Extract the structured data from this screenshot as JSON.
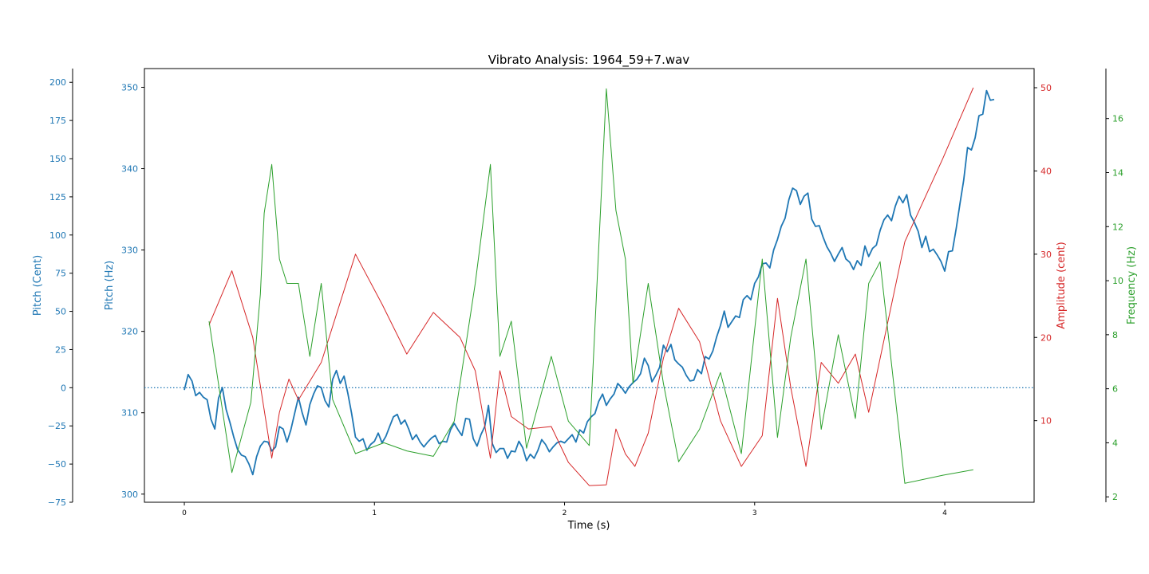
{
  "chart_data": {
    "type": "line",
    "title": "Vibrato Analysis: 1964_59+7.wav",
    "xlabel": "Time (s)",
    "xlim": [
      -0.21,
      4.47
    ],
    "xticks": [
      0,
      1,
      2,
      3,
      4
    ],
    "xtick_labels": [
      "0",
      "1",
      "2",
      "3",
      "4"
    ],
    "axes": {
      "pitch_cent": {
        "label": "Pitch (Cent)",
        "color": "#1f77b4",
        "ylim": [
          -75,
          209
        ],
        "ticks": [
          -75,
          -50,
          -25,
          0,
          25,
          50,
          75,
          100,
          125,
          150,
          175,
          200
        ],
        "tick_labels": [
          "−75",
          "−50",
          "−25",
          "0",
          "25",
          "50",
          "75",
          "100",
          "125",
          "150",
          "175",
          "200"
        ]
      },
      "pitch_hz": {
        "label": "Pitch (Hz)",
        "color": "#1f77b4",
        "ylim": [
          299.0,
          352.3
        ],
        "ticks": [
          300,
          310,
          320,
          330,
          340,
          350
        ],
        "tick_labels": [
          "300",
          "310",
          "320",
          "330",
          "340",
          "350"
        ]
      },
      "amplitude": {
        "label": "Amplitude (cent)",
        "color": "#d62728",
        "ylim": [
          0.2,
          52.3
        ],
        "ticks": [
          10,
          20,
          30,
          40,
          50
        ],
        "tick_labels": [
          "10",
          "20",
          "30",
          "40",
          "50"
        ]
      },
      "frequency": {
        "label": "Frequency (Hz)",
        "color": "#2ca02c",
        "ylim": [
          1.8,
          17.85
        ],
        "ticks": [
          2,
          4,
          6,
          8,
          10,
          12,
          14,
          16
        ],
        "tick_labels": [
          "2",
          "4",
          "6",
          "8",
          "10",
          "12",
          "14",
          "16"
        ]
      }
    },
    "reference_line": {
      "axis": "pitch_cent",
      "y": 0,
      "style": "dotted",
      "color": "#1f77b4"
    },
    "series": [
      {
        "name": "",
        "axis": "pitch_hz",
        "color": "#1f77b4",
        "x": [
          0.0,
          0.02,
          0.04,
          0.06,
          0.08,
          0.1,
          0.12,
          0.14,
          0.16,
          0.18,
          0.2,
          0.22,
          0.24,
          0.26,
          0.28,
          0.3,
          0.32,
          0.34,
          0.36,
          0.38,
          0.4,
          0.42,
          0.44,
          0.46,
          0.48,
          0.5,
          0.52,
          0.54,
          0.56,
          0.58,
          0.6,
          0.62,
          0.64,
          0.66,
          0.68,
          0.7,
          0.72,
          0.74,
          0.76,
          0.78,
          0.8,
          0.82,
          0.84,
          0.86,
          0.88,
          0.9,
          0.92,
          0.94,
          0.96,
          0.98,
          1.0,
          1.02,
          1.04,
          1.06,
          1.08,
          1.1,
          1.12,
          1.14,
          1.16,
          1.18,
          1.2,
          1.22,
          1.24,
          1.26,
          1.28,
          1.3,
          1.32,
          1.34,
          1.36,
          1.38,
          1.4,
          1.42,
          1.44,
          1.46,
          1.48,
          1.5,
          1.52,
          1.54,
          1.56,
          1.58,
          1.6,
          1.62,
          1.64,
          1.66,
          1.68,
          1.7,
          1.72,
          1.74,
          1.76,
          1.78,
          1.8,
          1.82,
          1.84,
          1.86,
          1.88,
          1.9,
          1.92,
          1.94,
          1.96,
          1.98,
          2.0,
          2.02,
          2.04,
          2.06,
          2.08,
          2.1,
          2.12,
          2.14,
          2.16,
          2.18,
          2.2,
          2.22,
          2.24,
          2.26,
          2.28,
          2.3,
          2.32,
          2.34,
          2.36,
          2.38,
          2.4,
          2.42,
          2.44,
          2.46,
          2.48,
          2.5,
          2.52,
          2.54,
          2.56,
          2.58,
          2.6,
          2.62,
          2.64,
          2.66,
          2.68,
          2.7,
          2.72,
          2.74,
          2.76,
          2.78,
          2.8,
          2.82,
          2.84,
          2.86,
          2.88,
          2.9,
          2.92,
          2.94,
          2.96,
          2.98,
          3.0,
          3.02,
          3.04,
          3.06,
          3.08,
          3.1,
          3.12,
          3.14,
          3.16,
          3.18,
          3.2,
          3.22,
          3.24,
          3.26,
          3.28,
          3.3,
          3.32,
          3.34,
          3.36,
          3.38,
          3.4,
          3.42,
          3.44,
          3.46,
          3.48,
          3.5,
          3.52,
          3.54,
          3.56,
          3.58,
          3.6,
          3.62,
          3.64,
          3.66,
          3.68,
          3.7,
          3.72,
          3.74,
          3.76,
          3.78,
          3.8,
          3.82,
          3.84,
          3.86,
          3.88,
          3.9,
          3.92,
          3.94,
          3.96,
          3.98,
          4.0,
          4.02,
          4.04,
          4.06,
          4.08,
          4.1,
          4.12,
          4.14,
          4.16,
          4.18,
          4.2,
          4.22,
          4.24,
          4.26
        ],
        "values": [
          312.8,
          314.7,
          313.9,
          312.1,
          312.5,
          311.9,
          311.6,
          309.2,
          308.0,
          311.8,
          313.1,
          310.4,
          308.8,
          307.0,
          305.5,
          304.8,
          304.6,
          303.7,
          302.4,
          304.6,
          305.9,
          306.5,
          306.4,
          305.3,
          305.8,
          308.3,
          308.0,
          306.4,
          307.9,
          309.9,
          311.9,
          310.0,
          308.5,
          311.0,
          312.3,
          313.3,
          313.1,
          311.5,
          310.7,
          314.1,
          315.2,
          313.6,
          314.5,
          312.4,
          309.9,
          307.0,
          306.5,
          306.8,
          305.4,
          306.1,
          306.5,
          307.5,
          306.3,
          307.1,
          308.3,
          309.5,
          309.8,
          308.6,
          309.1,
          308.0,
          306.7,
          307.3,
          306.4,
          305.8,
          306.4,
          306.9,
          307.2,
          306.2,
          306.5,
          306.4,
          307.9,
          308.7,
          307.9,
          307.2,
          309.3,
          309.2,
          306.8,
          305.9,
          307.3,
          308.3,
          310.9,
          306.2,
          305.1,
          305.6,
          305.6,
          304.4,
          305.3,
          305.2,
          306.5,
          305.7,
          304.1,
          304.9,
          304.4,
          305.4,
          306.7,
          306.1,
          305.2,
          305.8,
          306.3,
          306.5,
          306.3,
          306.8,
          307.3,
          306.4,
          307.9,
          307.5,
          308.9,
          309.5,
          309.9,
          311.4,
          312.3,
          310.9,
          311.7,
          312.3,
          313.6,
          313.1,
          312.4,
          313.2,
          313.7,
          314.1,
          314.8,
          316.7,
          315.8,
          313.8,
          314.6,
          315.6,
          318.3,
          317.5,
          318.4,
          316.5,
          316.0,
          315.6,
          314.6,
          313.9,
          314.0,
          315.3,
          314.8,
          316.9,
          316.6,
          317.6,
          319.3,
          320.7,
          322.5,
          320.5,
          321.2,
          321.9,
          321.7,
          323.9,
          324.4,
          323.9,
          325.9,
          326.7,
          328.3,
          328.4,
          327.8,
          330.0,
          331.3,
          332.9,
          333.9,
          336.2,
          337.6,
          337.3,
          335.6,
          336.6,
          337.0,
          333.8,
          332.9,
          333.0,
          331.6,
          330.4,
          329.6,
          328.6,
          329.5,
          330.3,
          328.9,
          328.5,
          327.6,
          328.7,
          328.1,
          330.5,
          329.2,
          330.2,
          330.6,
          332.4,
          333.7,
          334.3,
          333.6,
          335.4,
          336.6,
          335.8,
          336.8,
          334.3,
          333.4,
          332.3,
          330.3,
          331.7,
          329.8,
          330.1,
          329.4,
          328.6,
          327.4,
          329.8,
          329.9,
          332.6,
          335.7,
          338.6,
          342.6,
          342.3,
          343.8,
          346.5,
          346.7,
          349.6,
          348.4,
          348.5
        ]
      },
      {
        "name": "",
        "axis": "amplitude",
        "color": "#d62728",
        "x": [
          0.13,
          0.25,
          0.36,
          0.46,
          0.5,
          0.55,
          0.6,
          0.72,
          0.9,
          1.04,
          1.17,
          1.31,
          1.45,
          1.53,
          1.61,
          1.66,
          1.72,
          1.81,
          1.93,
          2.02,
          2.13,
          2.22,
          2.27,
          2.32,
          2.37,
          2.44,
          2.52,
          2.6,
          2.71,
          2.82,
          2.93,
          3.04,
          3.12,
          3.19,
          3.27,
          3.35,
          3.44,
          3.53,
          3.6,
          3.79,
          3.99,
          4.15
        ],
        "values": [
          21.5,
          28.0,
          20.0,
          5.5,
          11.0,
          15.0,
          12.5,
          17.0,
          30.0,
          24.0,
          18.0,
          23.0,
          20.0,
          16.0,
          5.5,
          16.0,
          10.5,
          9.0,
          9.3,
          5.0,
          2.2,
          2.3,
          9.0,
          6.0,
          4.5,
          8.5,
          17.5,
          23.5,
          19.5,
          10.0,
          4.5,
          8.2,
          24.7,
          14.0,
          4.5,
          17.0,
          14.5,
          18.0,
          11.0,
          31.5,
          41.5,
          50.0
        ]
      },
      {
        "name": "",
        "axis": "frequency",
        "color": "#2ca02c",
        "x": [
          0.13,
          0.25,
          0.35,
          0.4,
          0.42,
          0.46,
          0.5,
          0.54,
          0.6,
          0.66,
          0.72,
          0.78,
          0.9,
          1.05,
          1.17,
          1.31,
          1.42,
          1.53,
          1.61,
          1.66,
          1.72,
          1.8,
          1.93,
          2.02,
          2.13,
          2.22,
          2.27,
          2.32,
          2.36,
          2.44,
          2.52,
          2.6,
          2.71,
          2.82,
          2.93,
          3.04,
          3.12,
          3.19,
          3.27,
          3.35,
          3.44,
          3.53,
          3.6,
          3.66,
          3.79,
          3.99,
          4.15
        ],
        "values": [
          8.5,
          2.9,
          5.5,
          9.5,
          12.5,
          14.3,
          10.8,
          9.9,
          9.9,
          7.2,
          9.9,
          5.6,
          3.6,
          4.0,
          3.7,
          3.5,
          4.8,
          9.9,
          14.3,
          7.2,
          8.5,
          3.8,
          7.2,
          4.8,
          3.9,
          17.1,
          12.6,
          10.8,
          6.2,
          9.9,
          6.2,
          3.3,
          4.5,
          6.6,
          3.6,
          10.8,
          4.2,
          7.9,
          10.8,
          4.5,
          8.0,
          4.9,
          9.9,
          10.7,
          2.5,
          2.8,
          3.0
        ]
      }
    ]
  }
}
